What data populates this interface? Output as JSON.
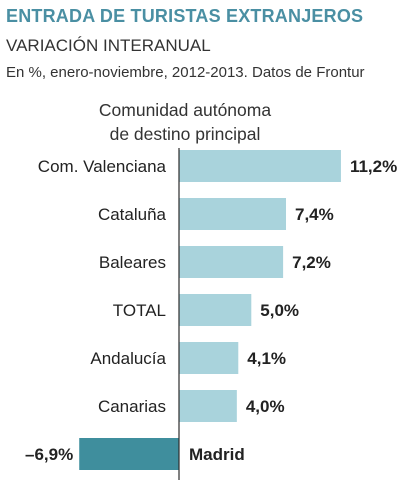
{
  "title": "ENTRADA DE TURISTAS EXTRANJEROS",
  "subtitle": "VARIACIÓN INTERANUAL",
  "note": "En %, enero-noviembre, 2012-2013. Datos de Frontur",
  "category_header": [
    "Comunidad autónoma",
    "de destino principal"
  ],
  "colors": {
    "positive_bar": "#a9d3dc",
    "negative_bar": "#3f8e9d",
    "axis": "#2c2c2c",
    "title": "#4a8fa3"
  },
  "chart_data": {
    "type": "bar",
    "orientation": "horizontal",
    "title": "ENTRADA DE TURISTAS EXTRANJEROS",
    "subtitle": "VARIACIÓN INTERANUAL",
    "categories": [
      "Com. Valenciana",
      "Cataluña",
      "Baleares",
      "TOTAL",
      "Andalucía",
      "Canarias",
      "Madrid"
    ],
    "values": [
      11.2,
      7.4,
      7.2,
      5.0,
      4.1,
      4.0,
      -6.9
    ],
    "value_labels": [
      "11,2%",
      "7,4%",
      "7,2%",
      "5,0%",
      "4,1%",
      "4,0%",
      "–6,9%"
    ],
    "unit": "%",
    "xlim": [
      -6.9,
      11.2
    ],
    "grid": false,
    "legend": "none"
  }
}
